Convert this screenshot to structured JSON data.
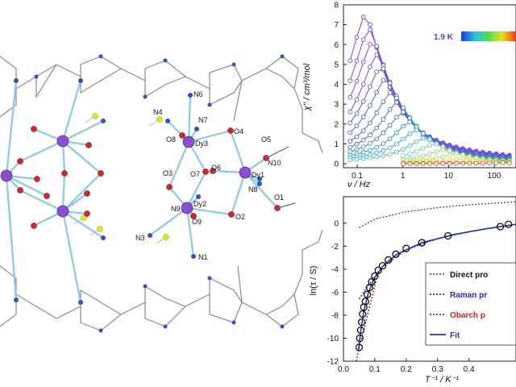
{
  "structure": {
    "atom_labels": [
      "N6",
      "N4",
      "N7",
      "O8",
      "Dy3",
      "O4",
      "O5",
      "N10",
      "O3",
      "O7",
      "O6",
      "Dy1",
      "N8",
      "O1",
      "N9",
      "Dy2",
      "O9",
      "O2",
      "N3",
      "N1"
    ],
    "colors": {
      "dy": "#8a4fd0",
      "o": "#cc2a2a",
      "n": "#3050c8",
      "f": "#d4e82a",
      "bond": "#88c8e8",
      "ligand": "#8a8a8a"
    }
  },
  "chart_data": [
    {
      "type": "line",
      "xlabel": "ν / Hz",
      "ylabel": "χ'' / cm³/mol",
      "xscale": "log",
      "xlim": [
        0.05,
        300
      ],
      "ylim": [
        -0.2,
        8
      ],
      "xticks": [
        "0.1",
        "1",
        "10",
        "100"
      ],
      "yticks": [
        "0",
        "1",
        "2",
        "3",
        "4",
        "5",
        "6",
        "7",
        "8"
      ],
      "colorbar_label": "1.9 K",
      "series_peaks": [
        7.5,
        6.8,
        6.2,
        5.5,
        4.9,
        4.3,
        3.6,
        3.1,
        2.6,
        2.1,
        1.7,
        1.3,
        1.0,
        0.7,
        0.5,
        0.3,
        0.15,
        0.05
      ],
      "peak_frequencies": [
        0.15,
        0.18,
        0.22,
        0.27,
        0.33,
        0.42,
        0.55,
        0.75,
        1.0,
        1.4,
        2.0,
        3.0,
        5.0,
        8.0,
        15,
        30,
        60,
        150
      ]
    },
    {
      "type": "scatter",
      "xlabel": "T⁻¹ / K⁻¹",
      "ylabel": "ln(τ / S)",
      "xlim": [
        0,
        0.55
      ],
      "ylim": [
        -12,
        2.3
      ],
      "xticks": [
        "0.0",
        "0.1",
        "0.2",
        "0.3",
        "0.4"
      ],
      "yticks": [
        "0",
        "-2",
        "-4",
        "-6",
        "-8",
        "-10",
        "-12"
      ],
      "points": [
        [
          0.05,
          -10.8
        ],
        [
          0.052,
          -10.0
        ],
        [
          0.055,
          -9.3
        ],
        [
          0.058,
          -8.6
        ],
        [
          0.061,
          -7.9
        ],
        [
          0.065,
          -7.3
        ],
        [
          0.07,
          -6.8
        ],
        [
          0.076,
          -6.2
        ],
        [
          0.083,
          -5.6
        ],
        [
          0.09,
          -5.1
        ],
        [
          0.1,
          -4.6
        ],
        [
          0.111,
          -4.1
        ],
        [
          0.125,
          -3.7
        ],
        [
          0.143,
          -3.2
        ],
        [
          0.167,
          -2.7
        ],
        [
          0.2,
          -2.2
        ],
        [
          0.25,
          -1.7
        ],
        [
          0.333,
          -1.1
        ],
        [
          0.5,
          -0.3
        ],
        [
          0.526,
          -0.1
        ]
      ],
      "lines": {
        "direct": [
          [
            0.05,
            -0.4
          ],
          [
            0.1,
            0.35
          ],
          [
            0.2,
            1.0
          ],
          [
            0.3,
            1.35
          ],
          [
            0.4,
            1.6
          ],
          [
            0.55,
            1.85
          ]
        ],
        "raman": [
          [
            0.05,
            -6.6
          ],
          [
            0.08,
            -5.4
          ],
          [
            0.12,
            -3.9
          ],
          [
            0.2,
            -2.3
          ],
          [
            0.3,
            -1.35
          ],
          [
            0.4,
            -0.75
          ],
          [
            0.5,
            -0.3
          ],
          [
            0.55,
            -0.1
          ]
        ],
        "orbach": [
          [
            0.04,
            -12
          ],
          [
            0.06,
            -9.8
          ],
          [
            0.08,
            -7.6
          ],
          [
            0.1,
            -5.4
          ],
          [
            0.11,
            -4.3
          ]
        ],
        "fit": [
          [
            0.048,
            -11
          ],
          [
            0.055,
            -9.4
          ],
          [
            0.065,
            -7.6
          ],
          [
            0.08,
            -6.0
          ],
          [
            0.1,
            -4.7
          ],
          [
            0.13,
            -3.6
          ],
          [
            0.17,
            -2.7
          ],
          [
            0.25,
            -1.7
          ],
          [
            0.35,
            -1.0
          ],
          [
            0.45,
            -0.5
          ],
          [
            0.55,
            -0.1
          ]
        ]
      },
      "legend": [
        {
          "label": "Direct pro",
          "color": "#555555"
        },
        {
          "label": "Raman pr",
          "color": "#2a2ab0"
        },
        {
          "label": "Obarch p",
          "color": "#cc2222"
        },
        {
          "label": "Fit",
          "color": "#2a3aa0"
        }
      ]
    }
  ]
}
